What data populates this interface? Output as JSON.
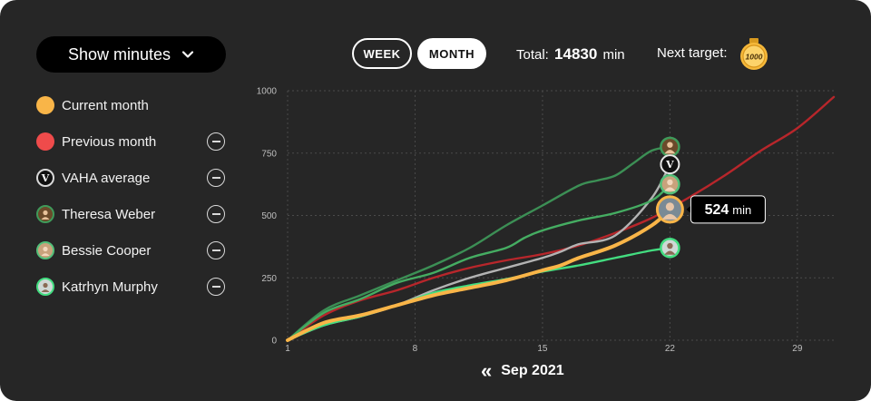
{
  "header": {
    "dropdown_label": "Show minutes",
    "week_label": "WEEK",
    "month_label": "MONTH",
    "total_prefix": "Total:",
    "total_value": "14830",
    "total_unit": "min",
    "next_target_label": "Next target:",
    "next_target_value": "1000"
  },
  "legend": [
    {
      "label": "Current month",
      "color": "#f9b548",
      "kind": "dot"
    },
    {
      "label": "Previous month",
      "color": "#ef4b4b",
      "kind": "dot"
    },
    {
      "label": "VAHA average",
      "color": "#d9d9d9",
      "kind": "vaha"
    },
    {
      "label": "Theresa Weber",
      "color": "#3f9a5a",
      "kind": "avatar"
    },
    {
      "label": "Bessie Cooper",
      "color": "#53c07a",
      "kind": "avatar"
    },
    {
      "label": "Katrhyn Murphy",
      "color": "#43dd80",
      "kind": "avatar"
    }
  ],
  "tooltip": {
    "value": "524",
    "unit": "min"
  },
  "footer": {
    "month_label": "Sep 2021"
  },
  "colors": {
    "current": "#f9b548",
    "previous": "#b8262b",
    "average": "#b3b3b3",
    "theresa": "#3c8f55",
    "bessie": "#45ad62",
    "katrhyn": "#43dd80"
  },
  "chart_data": {
    "type": "line",
    "xlim": [
      1,
      31
    ],
    "ylim": [
      0,
      1000
    ],
    "x_ticks": [
      1,
      8,
      15,
      22,
      29
    ],
    "y_ticks": [
      0,
      250,
      500,
      750,
      1000
    ],
    "grid": true,
    "series": [
      {
        "name": "Previous month",
        "color_key": "previous",
        "x": [
          1,
          3,
          5,
          7,
          9,
          11,
          13,
          15,
          17,
          19,
          21,
          23,
          25,
          27,
          29,
          31
        ],
        "y": [
          0,
          100,
          160,
          200,
          250,
          290,
          320,
          345,
          380,
          430,
          490,
          570,
          660,
          760,
          850,
          975
        ]
      },
      {
        "name": "VAHA average",
        "color_key": "average",
        "x": [
          1,
          3,
          5,
          7,
          9,
          11,
          13,
          15,
          16,
          17,
          19,
          21,
          22
        ],
        "y": [
          0,
          60,
          95,
          140,
          200,
          250,
          290,
          330,
          355,
          385,
          420,
          570,
          705
        ]
      },
      {
        "name": "Theresa Weber",
        "color_key": "theresa",
        "x": [
          1,
          3,
          5,
          7,
          9,
          11,
          13,
          15,
          17,
          18,
          19,
          20,
          21,
          22
        ],
        "y": [
          0,
          120,
          180,
          240,
          300,
          370,
          460,
          540,
          620,
          640,
          660,
          710,
          760,
          775
        ]
      },
      {
        "name": "Bessie Cooper",
        "color_key": "bessie",
        "x": [
          1,
          3,
          5,
          7,
          9,
          11,
          13,
          14,
          15,
          17,
          19,
          21,
          22
        ],
        "y": [
          0,
          110,
          165,
          230,
          270,
          330,
          370,
          410,
          440,
          480,
          510,
          560,
          625
        ]
      },
      {
        "name": "Katrhyn Murphy",
        "color_key": "katrhyn",
        "x": [
          1,
          3,
          5,
          7,
          9,
          11,
          13,
          15,
          17,
          19,
          21,
          22
        ],
        "y": [
          0,
          60,
          95,
          140,
          190,
          220,
          245,
          275,
          300,
          330,
          360,
          370
        ]
      },
      {
        "name": "Current month",
        "color_key": "current",
        "x": [
          1,
          3,
          5,
          7,
          9,
          11,
          13,
          15,
          16,
          17,
          19,
          21,
          22
        ],
        "y": [
          0,
          70,
          100,
          140,
          180,
          210,
          240,
          280,
          300,
          330,
          380,
          460,
          524
        ]
      }
    ]
  }
}
